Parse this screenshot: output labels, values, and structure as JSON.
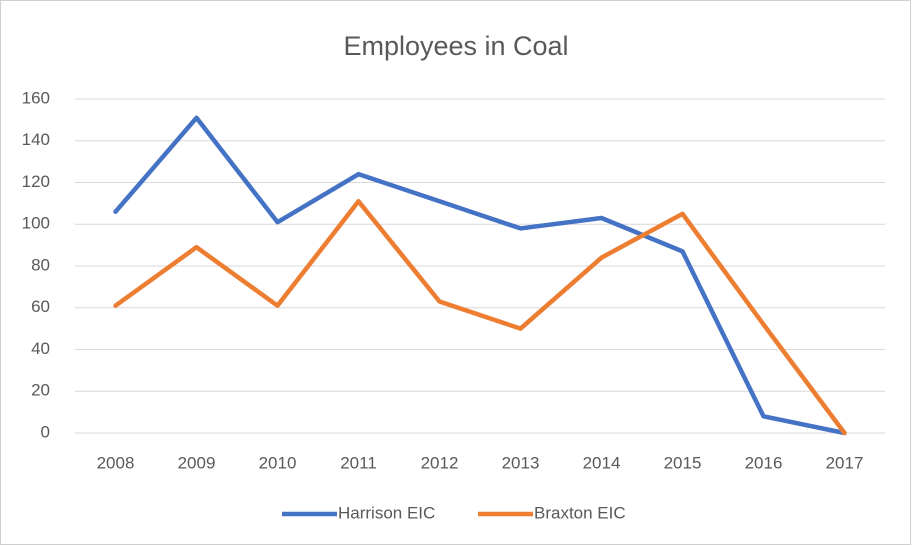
{
  "chart_data": {
    "type": "line",
    "title": "Employees in Coal",
    "categories": [
      "2008",
      "2009",
      "2010",
      "2011",
      "2012",
      "2013",
      "2014",
      "2015",
      "2016",
      "2017"
    ],
    "series": [
      {
        "name": "Harrison EIC",
        "color": "#4472c4",
        "values": [
          106,
          151,
          101,
          124,
          111,
          98,
          103,
          87,
          8,
          0
        ]
      },
      {
        "name": "Braxton EIC",
        "color": "#ed7d31",
        "values": [
          61,
          89,
          61,
          111,
          63,
          50,
          84,
          105,
          52,
          0
        ]
      }
    ],
    "ylim": [
      0,
      160
    ],
    "yticks": [
      0,
      20,
      40,
      60,
      80,
      100,
      120,
      140,
      160
    ],
    "grid": true,
    "legend": "bottom"
  }
}
